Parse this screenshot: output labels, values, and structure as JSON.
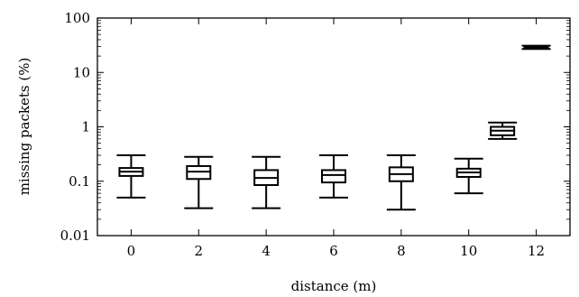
{
  "chart_data": {
    "type": "box",
    "title": "",
    "xlabel": "distance (m)",
    "ylabel": "missing packets (%)",
    "xlim": [
      -1,
      13
    ],
    "ylim": [
      0.01,
      100
    ],
    "yscale": "log",
    "grid": false,
    "x_ticks": [
      0,
      2,
      4,
      6,
      8,
      10,
      12
    ],
    "x_tick_labels": [
      "0",
      "2",
      "4",
      "6",
      "8",
      "10",
      "12"
    ],
    "y_ticks": [
      0.01,
      0.1,
      1,
      10,
      100
    ],
    "y_tick_labels": [
      "0.01",
      "0.1",
      "1",
      "10",
      "100"
    ],
    "boxes": [
      {
        "x": 0,
        "min": 0.05,
        "q1": 0.125,
        "median": 0.15,
        "q3": 0.175,
        "max": 0.3
      },
      {
        "x": 2,
        "min": 0.032,
        "q1": 0.11,
        "median": 0.15,
        "q3": 0.19,
        "max": 0.28
      },
      {
        "x": 4,
        "min": 0.032,
        "q1": 0.085,
        "median": 0.115,
        "q3": 0.16,
        "max": 0.28
      },
      {
        "x": 6,
        "min": 0.05,
        "q1": 0.095,
        "median": 0.13,
        "q3": 0.16,
        "max": 0.3
      },
      {
        "x": 8,
        "min": 0.03,
        "q1": 0.1,
        "median": 0.135,
        "q3": 0.18,
        "max": 0.3
      },
      {
        "x": 10,
        "min": 0.06,
        "q1": 0.12,
        "median": 0.145,
        "q3": 0.17,
        "max": 0.26
      },
      {
        "x": 11,
        "min": 0.6,
        "q1": 0.7,
        "median": 0.85,
        "q3": 1.0,
        "max": 1.2
      },
      {
        "x": 12,
        "min": 27,
        "q1": 28,
        "median": 29,
        "q3": 30,
        "max": 31
      }
    ]
  }
}
